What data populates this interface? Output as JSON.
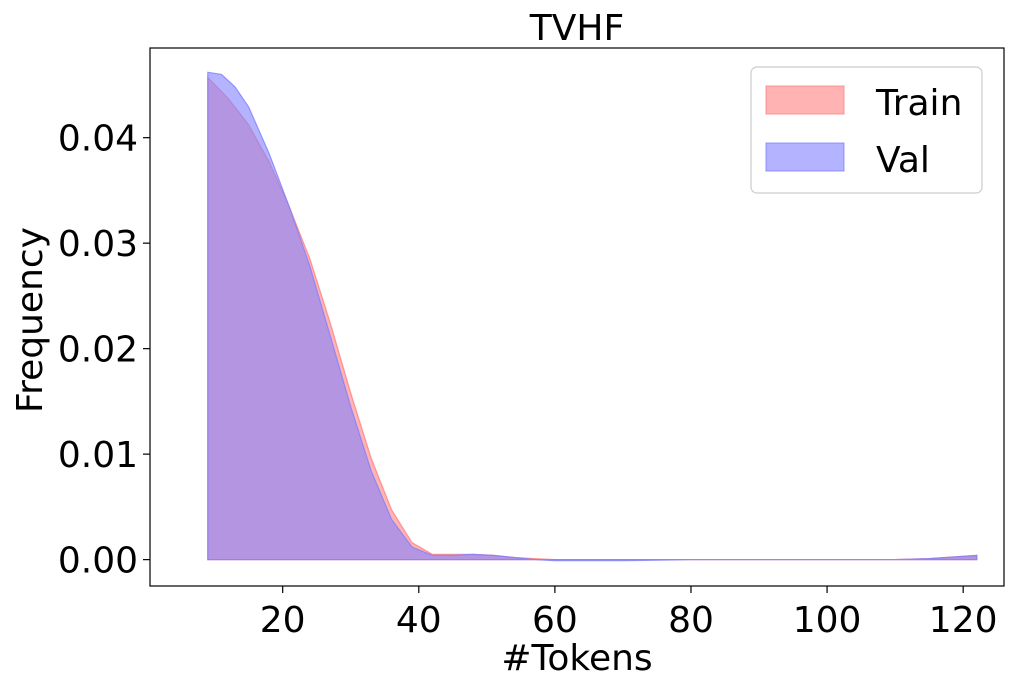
{
  "chart_data": {
    "type": "area",
    "title": "TVHF",
    "xlabel": "#Tokens",
    "ylabel": "Frequency",
    "xlim": [
      0.5,
      126
    ],
    "ylim": [
      -0.0025,
      0.0485
    ],
    "xticks": [
      20,
      40,
      60,
      80,
      100,
      120
    ],
    "yticks": [
      0.0,
      0.01,
      0.02,
      0.03,
      0.04
    ],
    "xtick_labels": [
      "20",
      "40",
      "60",
      "80",
      100,
      "120"
    ],
    "ytick_labels": [
      "0.00",
      "0.01",
      "0.02",
      "0.03",
      "0.04"
    ],
    "legend_position": "top-right",
    "series": [
      {
        "name": "Train",
        "color": "#ff8080",
        "x": [
          9,
          12,
          15,
          18,
          21,
          24,
          27,
          30,
          33,
          36,
          39,
          42,
          45,
          48,
          51,
          54,
          57,
          60,
          65,
          70,
          80,
          90,
          100,
          110,
          115,
          122
        ],
        "y": [
          0.0457,
          0.0437,
          0.0412,
          0.0377,
          0.0334,
          0.0285,
          0.0224,
          0.0158,
          0.0096,
          0.0047,
          0.0016,
          0.0005,
          0.0005,
          0.0005,
          0.0004,
          0.0002,
          0.0001,
          0.0,
          0.0,
          0.0,
          0.0,
          0.0,
          0.0,
          0.0,
          0.0001,
          0.0004
        ]
      },
      {
        "name": "Val",
        "color": "#8080ff",
        "x": [
          9,
          11,
          13,
          15,
          18,
          21,
          24,
          27,
          30,
          33,
          36,
          39,
          42,
          45,
          48,
          51,
          54,
          57,
          60,
          65,
          70,
          80,
          90,
          100,
          110,
          115,
          122
        ],
        "y": [
          0.0462,
          0.046,
          0.0448,
          0.0429,
          0.0385,
          0.0334,
          0.0278,
          0.0212,
          0.0145,
          0.0084,
          0.0038,
          0.0012,
          0.0004,
          0.0004,
          0.0005,
          0.0004,
          0.0002,
          0.0,
          -0.0001,
          -0.0001,
          -0.0001,
          0.0,
          0.0,
          0.0,
          0.0,
          0.0001,
          0.0004
        ]
      }
    ]
  }
}
